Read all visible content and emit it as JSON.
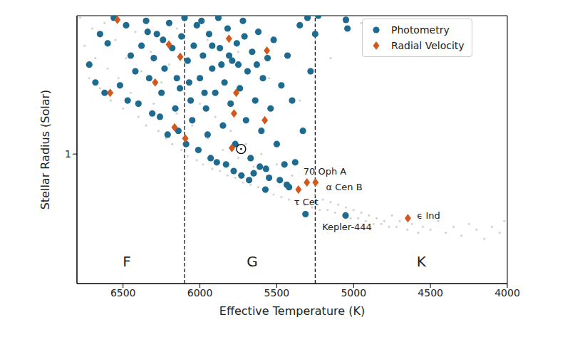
{
  "chart_data": {
    "type": "scatter",
    "x_label": "Effective Temperature (K)",
    "y_label": "Stellar Radius (Solar)",
    "xlim": [
      6800,
      4000
    ],
    "xticks": [
      6500,
      6000,
      5500,
      5000,
      4500,
      4000
    ],
    "ylim": [
      0.53,
      1.97
    ],
    "yticks": [
      1
    ],
    "log": "y",
    "legend": "upper right",
    "series": [
      {
        "color": "#b4b4b4",
        "marker": "point",
        "x": [
          6780,
          6750,
          6720,
          6700,
          6680,
          6650,
          6620,
          6600,
          6580,
          6550,
          6530,
          6500,
          6480,
          6450,
          6420,
          6400,
          6380,
          6350,
          6320,
          6300,
          6270,
          6250,
          6220,
          6200,
          6180,
          6150,
          6120,
          6100,
          6080,
          6050,
          6020,
          6000,
          5980,
          5950,
          5920,
          5900,
          5870,
          5850,
          5820,
          5800,
          5770,
          5750,
          5720,
          5700,
          5670,
          5650,
          5620,
          5600,
          5570,
          5550,
          5520,
          5500,
          5470,
          5450,
          5420,
          5400,
          5370,
          5350,
          5320,
          5300,
          5270,
          5250,
          5220,
          5200,
          5170,
          5150,
          5120,
          5100,
          5070,
          5050,
          5020,
          5000,
          4970,
          4950,
          4920,
          4900,
          4870,
          4850,
          4820,
          4800,
          4770,
          4750,
          4720,
          4700,
          4650,
          4620,
          4580,
          4550,
          4500,
          4450,
          4400,
          4350,
          4300,
          4250,
          4200,
          4150,
          4100,
          4050,
          4020,
          6150,
          5950,
          5750,
          5550,
          5350,
          5150,
          4950
        ],
        "y": [
          1.95,
          1.7,
          1.45,
          1.85,
          1.6,
          1.38,
          1.9,
          1.52,
          1.3,
          1.75,
          1.45,
          1.25,
          1.6,
          1.35,
          1.82,
          1.2,
          1.5,
          1.15,
          1.65,
          1.28,
          1.12,
          1.42,
          1.08,
          1.55,
          1.05,
          1.22,
          1.02,
          1.35,
          0.99,
          1.15,
          0.97,
          1.28,
          0.95,
          1.08,
          0.93,
          1.2,
          0.92,
          1.02,
          0.9,
          1.12,
          0.89,
          0.98,
          0.87,
          1.05,
          0.86,
          0.94,
          0.85,
          1.0,
          0.83,
          0.9,
          0.82,
          0.95,
          0.81,
          0.87,
          0.8,
          0.9,
          0.79,
          0.84,
          0.78,
          0.86,
          0.77,
          0.82,
          0.76,
          0.8,
          0.76,
          0.79,
          0.75,
          0.78,
          0.74,
          0.77,
          0.73,
          0.76,
          0.73,
          0.75,
          0.72,
          0.74,
          0.71,
          0.73,
          0.71,
          0.72,
          0.7,
          0.74,
          0.7,
          0.72,
          0.69,
          0.71,
          0.68,
          0.7,
          0.69,
          0.72,
          0.68,
          0.7,
          0.67,
          0.71,
          0.69,
          0.66,
          0.7,
          0.68,
          0.72,
          1.85,
          1.75,
          1.65,
          1.45,
          1.3,
          1.6,
          1.9
        ]
      },
      {
        "name": "Photometry",
        "color": "#1f6b8f",
        "marker": "circle",
        "x": [
          6650,
          6720,
          6600,
          6560,
          6480,
          6450,
          6420,
          6380,
          6350,
          6330,
          6300,
          6280,
          6250,
          6230,
          6200,
          6180,
          6160,
          6150,
          6120,
          6100,
          6080,
          6060,
          6050,
          6040,
          6020,
          6000,
          5980,
          5960,
          5950,
          5940,
          5920,
          5900,
          5880,
          5870,
          5850,
          5840,
          5820,
          5800,
          5790,
          5770,
          5760,
          5740,
          5720,
          5700,
          5690,
          5670,
          5660,
          5640,
          5620,
          5600,
          5590,
          5570,
          5560,
          5540,
          5520,
          5500,
          5480,
          5470,
          5450,
          5430,
          5420,
          5400,
          5380,
          5350,
          5330,
          5300,
          5280,
          5250,
          5230,
          5050,
          5040,
          5574,
          5313,
          5052,
          5434,
          6620,
          6680,
          6520,
          6470,
          6400,
          6310,
          6260,
          6210,
          6140,
          6090,
          6130,
          6010,
          5930,
          5890,
          5830,
          5780,
          5730,
          5680,
          5650,
          5610,
          5550,
          5920,
          5860,
          5810,
          5750,
          5710,
          5630,
          6070,
          5970,
          5990,
          6240,
          6340
        ],
        "y": [
          1.8,
          1.55,
          1.72,
          1.95,
          1.88,
          1.62,
          1.5,
          1.7,
          1.92,
          1.45,
          1.6,
          1.8,
          1.35,
          1.52,
          1.9,
          1.68,
          1.25,
          1.45,
          1.78,
          1.95,
          1.58,
          1.3,
          1.18,
          1.7,
          1.88,
          1.45,
          1.62,
          1.25,
          1.1,
          1.8,
          1.52,
          1.35,
          1.95,
          1.68,
          1.15,
          1.42,
          1.85,
          1.28,
          1.58,
          1.05,
          1.72,
          1.38,
          1.92,
          1.18,
          1.5,
          0.98,
          1.65,
          1.3,
          1.82,
          1.12,
          1.45,
          0.93,
          1.6,
          1.25,
          1.75,
          1.05,
          0.88,
          1.4,
          0.95,
          1.62,
          0.85,
          1.3,
          0.96,
          1.88,
          1.12,
          1.95,
          1.5,
          1.8,
          1.97,
          1.93,
          1.85,
          0.84,
          0.745,
          0.74,
          0.86,
          1.35,
          1.42,
          1.4,
          1.3,
          1.28,
          1.22,
          1.2,
          1.1,
          1.12,
          1.05,
          1.38,
          1.02,
          0.98,
          0.96,
          0.95,
          0.92,
          0.9,
          0.88,
          0.91,
          0.94,
          0.89,
          1.7,
          1.55,
          1.62,
          1.55,
          1.78,
          1.55,
          1.42,
          1.35,
          1.92,
          1.75,
          1.82
        ]
      },
      {
        "name": "Radial Velocity",
        "color": "#d2581e",
        "marker": "diamond",
        "x": [
          6537,
          6202,
          6128,
          5811,
          5564,
          6291,
          6584,
          5764,
          5778,
          5578,
          6165,
          6095,
          5792,
          5304,
          5248,
          5359,
          4647
        ],
        "y": [
          1.93,
          1.71,
          1.61,
          1.76,
          1.66,
          1.42,
          1.35,
          1.35,
          1.22,
          1.18,
          1.14,
          1.08,
          1.03,
          0.87,
          0.87,
          0.84,
          0.73
        ]
      },
      {
        "color": "#000000",
        "marker": "sun",
        "x": [
          5732
        ],
        "y": [
          1.025
        ]
      }
    ],
    "vlines": {
      "values": [
        6100,
        5250
      ],
      "line_style": "dashed",
      "color": "#000000"
    },
    "annotations": [
      {
        "text": "70 Oph A",
        "x": 5187,
        "y": 0.92
      },
      {
        "text": "α Cen B",
        "x": 5061,
        "y": 0.85
      },
      {
        "text": "τ Cet",
        "x": 5308,
        "y": 0.79
      },
      {
        "text": "Kepler-444",
        "x": 5043,
        "y": 0.7
      },
      {
        "text": "ϵ Ind",
        "x": 4512,
        "y": 0.74
      },
      {
        "text": "F",
        "x": 6475,
        "y": 0.59
      },
      {
        "text": "G",
        "x": 5660,
        "y": 0.59
      },
      {
        "text": "K",
        "x": 4560,
        "y": 0.59
      }
    ]
  }
}
